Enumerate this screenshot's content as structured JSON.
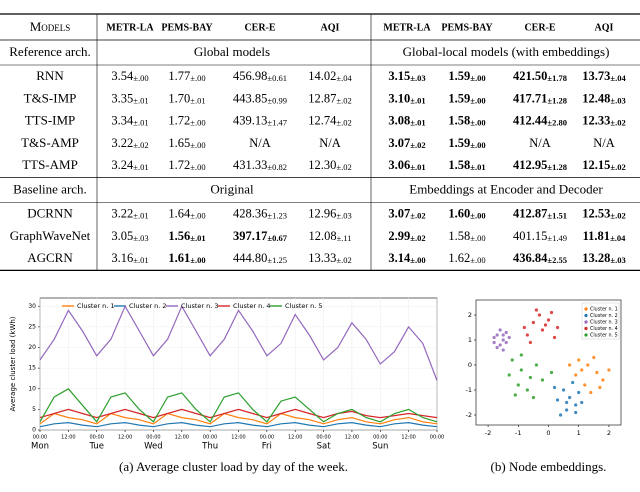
{
  "table": {
    "header": [
      "Models",
      "METR-LA",
      "PEMS-BAY",
      "CER-E",
      "AQI",
      "METR-LA",
      "PEMS-BAY",
      "CER-E",
      "AQI"
    ],
    "sections": [
      {
        "label": "Reference arch.",
        "left": "Global models",
        "right": "Global-local models (with embeddings)",
        "rows": [
          {
            "model": "RNN",
            "cells": [
              {
                "v": "3.54",
                "e": "±.00"
              },
              {
                "v": "1.77",
                "e": "±.00"
              },
              {
                "v": "456.98",
                "e": "±0.61"
              },
              {
                "v": "14.02",
                "e": "±.04"
              },
              {
                "v": "3.15",
                "e": "±.03",
                "b": true
              },
              {
                "v": "1.59",
                "e": "±.00",
                "b": true
              },
              {
                "v": "421.50",
                "e": "±1.78",
                "b": true
              },
              {
                "v": "13.73",
                "e": "±.04",
                "b": true
              }
            ]
          },
          {
            "model": "T&S-IMP",
            "cells": [
              {
                "v": "3.35",
                "e": "±.01"
              },
              {
                "v": "1.70",
                "e": "±.01"
              },
              {
                "v": "443.85",
                "e": "±0.99"
              },
              {
                "v": "12.87",
                "e": "±.02"
              },
              {
                "v": "3.10",
                "e": "±.01",
                "b": true
              },
              {
                "v": "1.59",
                "e": "±.00",
                "b": true
              },
              {
                "v": "417.71",
                "e": "±1.28",
                "b": true
              },
              {
                "v": "12.48",
                "e": "±.03",
                "b": true
              }
            ]
          },
          {
            "model": "TTS-IMP",
            "cells": [
              {
                "v": "3.34",
                "e": "±.01"
              },
              {
                "v": "1.72",
                "e": "±.00"
              },
              {
                "v": "439.13",
                "e": "±1.47"
              },
              {
                "v": "12.74",
                "e": "±.02"
              },
              {
                "v": "3.08",
                "e": "±.01",
                "b": true
              },
              {
                "v": "1.58",
                "e": "±.00",
                "b": true
              },
              {
                "v": "412.44",
                "e": "±2.80",
                "b": true
              },
              {
                "v": "12.33",
                "e": "±.02",
                "b": true
              }
            ]
          },
          {
            "model": "T&S-AMP",
            "cells": [
              {
                "v": "3.22",
                "e": "±.02"
              },
              {
                "v": "1.65",
                "e": "±.00"
              },
              {
                "v": "N/A"
              },
              {
                "v": "N/A"
              },
              {
                "v": "3.07",
                "e": "±.02",
                "b": true
              },
              {
                "v": "1.59",
                "e": "±.00",
                "b": true
              },
              {
                "v": "N/A"
              },
              {
                "v": "N/A"
              }
            ]
          },
          {
            "model": "TTS-AMP",
            "cells": [
              {
                "v": "3.24",
                "e": "±.01"
              },
              {
                "v": "1.72",
                "e": "±.00"
              },
              {
                "v": "431.33",
                "e": "±0.82"
              },
              {
                "v": "12.30",
                "e": "±.02"
              },
              {
                "v": "3.06",
                "e": "±.01",
                "b": true
              },
              {
                "v": "1.58",
                "e": "±.01",
                "b": true
              },
              {
                "v": "412.95",
                "e": "±1.28",
                "b": true
              },
              {
                "v": "12.15",
                "e": "±.02",
                "b": true
              }
            ]
          }
        ]
      },
      {
        "label": "Baseline arch.",
        "left": "Original",
        "right": "Embeddings at Encoder and Decoder",
        "rows": [
          {
            "model": "DCRNN",
            "cells": [
              {
                "v": "3.22",
                "e": "±.01"
              },
              {
                "v": "1.64",
                "e": "±.00"
              },
              {
                "v": "428.36",
                "e": "±1.23"
              },
              {
                "v": "12.96",
                "e": "±.03"
              },
              {
                "v": "3.07",
                "e": "±.02",
                "b": true
              },
              {
                "v": "1.60",
                "e": "±.00",
                "b": true
              },
              {
                "v": "412.87",
                "e": "±1.51",
                "b": true
              },
              {
                "v": "12.53",
                "e": "±.02",
                "b": true
              }
            ]
          },
          {
            "model": "GraphWaveNet",
            "cells": [
              {
                "v": "3.05",
                "e": "±.03"
              },
              {
                "v": "1.56",
                "e": "±.01",
                "b": true
              },
              {
                "v": "397.17",
                "e": "±0.67",
                "b": true
              },
              {
                "v": "12.08",
                "e": "±.11"
              },
              {
                "v": "2.99",
                "e": "±.02",
                "b": true
              },
              {
                "v": "1.58",
                "e": "±.00"
              },
              {
                "v": "401.15",
                "e": "±1.49"
              },
              {
                "v": "11.81",
                "e": "±.04",
                "b": true
              }
            ]
          },
          {
            "model": "AGCRN",
            "cells": [
              {
                "v": "3.16",
                "e": "±.01"
              },
              {
                "v": "1.61",
                "e": "±.00",
                "b": true
              },
              {
                "v": "444.80",
                "e": "±1.25"
              },
              {
                "v": "13.33",
                "e": "±.02"
              },
              {
                "v": "3.14",
                "e": "±.00",
                "b": true
              },
              {
                "v": "1.62",
                "e": "±.00"
              },
              {
                "v": "436.84",
                "e": "±2.55",
                "b": true
              },
              {
                "v": "13.28",
                "e": "±.03",
                "b": true
              }
            ]
          }
        ]
      }
    ]
  },
  "chart_data": [
    {
      "type": "line",
      "caption": "(a) Average cluster load by day of the week.",
      "y_label": "Average cluster load (kWh)",
      "x": [
        0,
        6,
        12,
        18,
        24,
        30,
        36,
        42,
        48,
        54,
        60,
        66,
        72,
        78,
        84,
        90,
        96,
        102,
        108,
        114,
        120,
        126,
        132,
        138,
        144,
        150,
        156,
        162,
        168
      ],
      "xlim": [
        0,
        168
      ],
      "xticks": [
        {
          "value": 0,
          "label": "00:00"
        },
        {
          "value": 12,
          "label": "12:00"
        },
        {
          "value": 24,
          "label": "00:00"
        },
        {
          "value": 36,
          "label": "12:00"
        },
        {
          "value": 48,
          "label": "00:00"
        },
        {
          "value": 60,
          "label": "12:00"
        },
        {
          "value": 72,
          "label": "00:00"
        },
        {
          "value": 84,
          "label": "12:00"
        },
        {
          "value": 96,
          "label": "00:00"
        },
        {
          "value": 108,
          "label": "12:00"
        },
        {
          "value": 120,
          "label": "00:00"
        },
        {
          "value": 132,
          "label": "12:00"
        },
        {
          "value": 144,
          "label": "00:00"
        },
        {
          "value": 156,
          "label": "12:00"
        },
        {
          "value": 168,
          "label": "00:00"
        }
      ],
      "days": [
        {
          "value": 0,
          "label": "Mon"
        },
        {
          "value": 24,
          "label": "Tue"
        },
        {
          "value": 48,
          "label": "Wed"
        },
        {
          "value": 72,
          "label": "Thu"
        },
        {
          "value": 96,
          "label": "Fri"
        },
        {
          "value": 120,
          "label": "Sat"
        },
        {
          "value": 144,
          "label": "Sun"
        }
      ],
      "ylim": [
        0,
        32
      ],
      "yticks": [
        0,
        5,
        10,
        15,
        20,
        25,
        30
      ],
      "grid": true,
      "series": [
        {
          "name": "Cluster n. 1",
          "color": "#ff7f0e",
          "values": [
            1.5,
            4,
            3,
            2.5,
            1.5,
            4,
            3,
            2.5,
            1.5,
            4,
            3,
            2.5,
            1.5,
            4,
            3,
            2.5,
            1.5,
            4,
            3,
            2.5,
            1.5,
            2.5,
            3,
            2,
            1.5,
            2.5,
            3,
            2,
            1.5
          ]
        },
        {
          "name": "Cluster n. 2",
          "color": "#1f77b4",
          "values": [
            0.8,
            1.5,
            1.8,
            1.2,
            0.8,
            1.5,
            1.8,
            1.2,
            0.8,
            1.5,
            1.8,
            1.2,
            0.8,
            1.5,
            1.8,
            1.2,
            0.8,
            1.5,
            1.8,
            1.2,
            0.8,
            1.5,
            1.8,
            1.2,
            0.8,
            1.5,
            1.8,
            1.2,
            0.8
          ]
        },
        {
          "name": "Cluster n. 3",
          "color": "#9467bd",
          "values": [
            17,
            22,
            29,
            24,
            18,
            22,
            30,
            24,
            18,
            22,
            30,
            24,
            18,
            22,
            29,
            24,
            18,
            21,
            28,
            23,
            17,
            20,
            26,
            22,
            16,
            19,
            25,
            21,
            12
          ]
        },
        {
          "name": "Cluster n. 4",
          "color": "#d62728",
          "values": [
            3,
            4,
            5,
            4,
            3,
            4,
            5,
            4,
            3,
            4,
            5,
            4,
            3,
            4,
            5,
            4,
            3,
            4,
            5,
            4,
            3,
            4,
            4.5,
            3.5,
            3,
            3.5,
            4,
            3.5,
            3
          ]
        },
        {
          "name": "Cluster n. 5",
          "color": "#2ca02c",
          "values": [
            2,
            8,
            10,
            6,
            2,
            8,
            9,
            5,
            2,
            8,
            9,
            5,
            2,
            8,
            9,
            5,
            2,
            7,
            8,
            5,
            2,
            4,
            5,
            3,
            2,
            4,
            5,
            3,
            2
          ]
        }
      ]
    },
    {
      "type": "scatter",
      "caption": "(b) Node embeddings.",
      "xlim": [
        -2.4,
        2.4
      ],
      "xticks": [
        -2,
        -1,
        0,
        1,
        2
      ],
      "ylim": [
        -2.4,
        2.6
      ],
      "yticks": [
        -2,
        -1,
        0,
        1,
        2
      ],
      "series": [
        {
          "name": "Cluster n. 1",
          "color": "#ff7f0e",
          "x": [
            1.0,
            1.3,
            1.6,
            1.8,
            1.2,
            0.9,
            1.5,
            2.0,
            1.4,
            0.7,
            1.7,
            1.1
          ],
          "y": [
            0.2,
            0.0,
            -0.3,
            -0.6,
            -0.8,
            -0.4,
            0.3,
            -0.2,
            -1.1,
            0.0,
            -0.9,
            -0.2
          ]
        },
        {
          "name": "Cluster n. 2",
          "color": "#1f77b4",
          "x": [
            0.5,
            0.7,
            0.9,
            0.3,
            0.6,
            1.0,
            0.2,
            0.8,
            1.1,
            0.4,
            0.6,
            0.9
          ],
          "y": [
            -1.0,
            -1.3,
            -1.6,
            -1.4,
            -1.8,
            -1.1,
            -0.9,
            -0.7,
            -1.5,
            -2.0,
            -1.5,
            -1.9
          ]
        },
        {
          "name": "Cluster n. 3",
          "color": "#9467bd",
          "x": [
            -1.7,
            -1.5,
            -1.6,
            -1.4,
            -1.8,
            -1.5,
            -1.3,
            -1.6,
            -1.7,
            -1.4,
            -1.5,
            -1.8
          ],
          "y": [
            1.2,
            1.0,
            0.8,
            1.3,
            0.9,
            0.6,
            1.1,
            1.4,
            0.7,
            0.9,
            1.2,
            1.1
          ]
        },
        {
          "name": "Cluster n. 4",
          "color": "#d62728",
          "x": [
            -0.3,
            -0.5,
            0.0,
            -0.2,
            -0.7,
            0.3,
            -0.4,
            0.1,
            -0.6,
            0.2,
            -0.1,
            -0.8
          ],
          "y": [
            2.0,
            1.7,
            1.8,
            1.4,
            1.2,
            1.5,
            2.2,
            2.1,
            0.9,
            1.1,
            1.6,
            1.5
          ]
        },
        {
          "name": "Cluster n. 5",
          "color": "#2ca02c",
          "x": [
            -1.2,
            -0.9,
            -0.6,
            -1.0,
            -0.4,
            -1.3,
            -0.7,
            -0.2,
            -0.9,
            -0.5,
            0.1,
            -1.1
          ],
          "y": [
            0.2,
            -0.2,
            -0.5,
            -0.8,
            0.0,
            -0.4,
            -1.0,
            -0.6,
            0.4,
            -1.3,
            -0.3,
            -1.2
          ]
        }
      ]
    }
  ]
}
